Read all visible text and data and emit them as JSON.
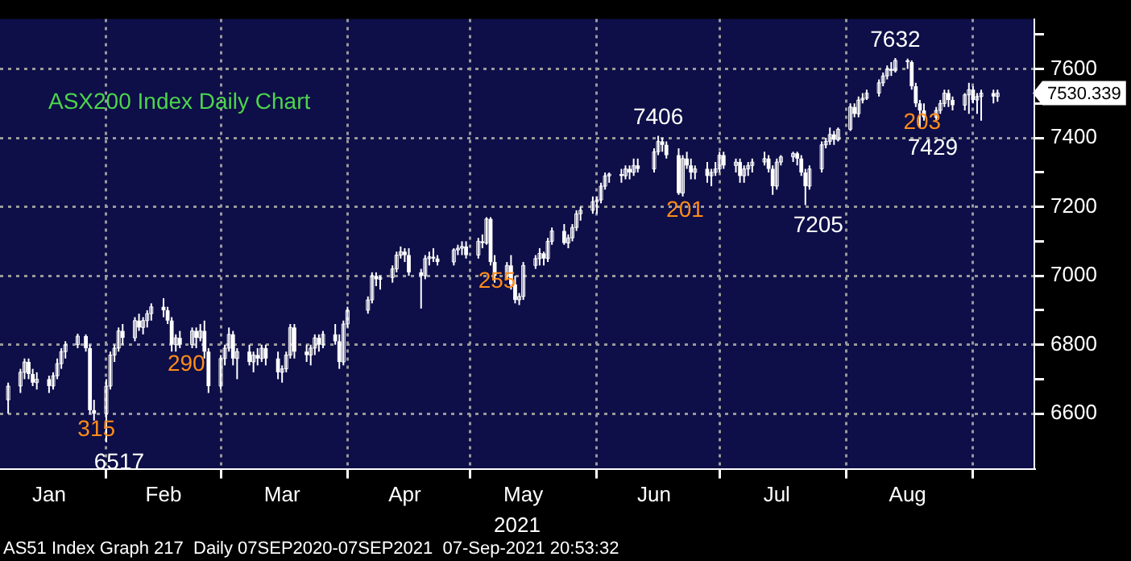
{
  "chart_data": {
    "type": "candlestick",
    "title": "ASX200 Index Daily Chart",
    "xlabel": "2021",
    "x": [
      "2021-01-08",
      "2021-01-11",
      "2021-01-12",
      "2021-01-13",
      "2021-01-14",
      "2021-01-15",
      "2021-01-18",
      "2021-01-19",
      "2021-01-20",
      "2021-01-21",
      "2021-01-22",
      "2021-01-25",
      "2021-01-27",
      "2021-01-28",
      "2021-01-29",
      "2021-02-01",
      "2021-02-02",
      "2021-02-03",
      "2021-02-04",
      "2021-02-05",
      "2021-02-08",
      "2021-02-09",
      "2021-02-10",
      "2021-02-11",
      "2021-02-12",
      "2021-02-15",
      "2021-02-16",
      "2021-02-17",
      "2021-02-18",
      "2021-02-19",
      "2021-02-22",
      "2021-02-23",
      "2021-02-24",
      "2021-02-25",
      "2021-02-26",
      "2021-03-01",
      "2021-03-02",
      "2021-03-03",
      "2021-03-04",
      "2021-03-05",
      "2021-03-08",
      "2021-03-09",
      "2021-03-10",
      "2021-03-11",
      "2021-03-12",
      "2021-03-15",
      "2021-03-16",
      "2021-03-17",
      "2021-03-18",
      "2021-03-19",
      "2021-03-22",
      "2021-03-23",
      "2021-03-24",
      "2021-03-25",
      "2021-03-26",
      "2021-03-29",
      "2021-03-30",
      "2021-03-31",
      "2021-04-01",
      "2021-04-06",
      "2021-04-07",
      "2021-04-08",
      "2021-04-09",
      "2021-04-12",
      "2021-04-13",
      "2021-04-14",
      "2021-04-15",
      "2021-04-16",
      "2021-04-19",
      "2021-04-20",
      "2021-04-21",
      "2021-04-22",
      "2021-04-23",
      "2021-04-27",
      "2021-04-28",
      "2021-04-29",
      "2021-04-30",
      "2021-05-03",
      "2021-05-04",
      "2021-05-05",
      "2021-05-06",
      "2021-05-07",
      "2021-05-10",
      "2021-05-11",
      "2021-05-12",
      "2021-05-13",
      "2021-05-14",
      "2021-05-17",
      "2021-05-18",
      "2021-05-19",
      "2021-05-20",
      "2021-05-21",
      "2021-05-24",
      "2021-05-25",
      "2021-05-26",
      "2021-05-27",
      "2021-05-28",
      "2021-05-31",
      "2021-06-01",
      "2021-06-02",
      "2021-06-03",
      "2021-06-04",
      "2021-06-07",
      "2021-06-08",
      "2021-06-09",
      "2021-06-10",
      "2021-06-11",
      "2021-06-15",
      "2021-06-16",
      "2021-06-17",
      "2021-06-18",
      "2021-06-21",
      "2021-06-22",
      "2021-06-23",
      "2021-06-24",
      "2021-06-25",
      "2021-06-28",
      "2021-06-29",
      "2021-06-30",
      "2021-07-01",
      "2021-07-02",
      "2021-07-05",
      "2021-07-06",
      "2021-07-07",
      "2021-07-08",
      "2021-07-09",
      "2021-07-12",
      "2021-07-13",
      "2021-07-14",
      "2021-07-15",
      "2021-07-16",
      "2021-07-19",
      "2021-07-20",
      "2021-07-21",
      "2021-07-22",
      "2021-07-23",
      "2021-07-26",
      "2021-07-27",
      "2021-07-28",
      "2021-07-29",
      "2021-07-30",
      "2021-08-02",
      "2021-08-03",
      "2021-08-04",
      "2021-08-05",
      "2021-08-06",
      "2021-08-09",
      "2021-08-10",
      "2021-08-11",
      "2021-08-12",
      "2021-08-13",
      "2021-08-16",
      "2021-08-17",
      "2021-08-18",
      "2021-08-19",
      "2021-08-20",
      "2021-08-23",
      "2021-08-24",
      "2021-08-25",
      "2021-08-26",
      "2021-08-27",
      "2021-08-30",
      "2021-08-31",
      "2021-09-01",
      "2021-09-02",
      "2021-09-03",
      "2021-09-06",
      "2021-09-07"
    ],
    "ohlc": [
      [
        6640,
        6690,
        6600,
        6680
      ],
      [
        6680,
        6730,
        6660,
        6720
      ],
      [
        6720,
        6760,
        6700,
        6750
      ],
      [
        6750,
        6760,
        6700,
        6715
      ],
      [
        6715,
        6730,
        6680,
        6690
      ],
      [
        6690,
        6720,
        6670,
        6700
      ],
      [
        6700,
        6710,
        6660,
        6680
      ],
      [
        6680,
        6720,
        6670,
        6710
      ],
      [
        6710,
        6760,
        6700,
        6745
      ],
      [
        6745,
        6790,
        6730,
        6780
      ],
      [
        6780,
        6810,
        6760,
        6800
      ],
      [
        6800,
        6832,
        6790,
        6825
      ],
      [
        6825,
        6830,
        6780,
        6790
      ],
      [
        6790,
        6800,
        6600,
        6610
      ],
      [
        6610,
        6640,
        6580,
        6600
      ],
      [
        6600,
        6700,
        6517,
        6680
      ],
      [
        6680,
        6780,
        6670,
        6770
      ],
      [
        6770,
        6800,
        6750,
        6790
      ],
      [
        6790,
        6850,
        6780,
        6840
      ],
      [
        6840,
        6860,
        6800,
        6820
      ],
      [
        6820,
        6880,
        6810,
        6870
      ],
      [
        6870,
        6890,
        6840,
        6850
      ],
      [
        6850,
        6880,
        6830,
        6870
      ],
      [
        6870,
        6900,
        6850,
        6890
      ],
      [
        6890,
        6920,
        6870,
        6910
      ],
      [
        6910,
        6935,
        6880,
        6900
      ],
      [
        6900,
        6910,
        6860,
        6870
      ],
      [
        6870,
        6880,
        6780,
        6800
      ],
      [
        6800,
        6830,
        6780,
        6820
      ],
      [
        6820,
        6840,
        6790,
        6800
      ],
      [
        6800,
        6850,
        6790,
        6840
      ],
      [
        6840,
        6850,
        6790,
        6820
      ],
      [
        6820,
        6860,
        6810,
        6840
      ],
      [
        6840,
        6870,
        6760,
        6780
      ],
      [
        6780,
        6790,
        6660,
        6680
      ],
      [
        6680,
        6770,
        6670,
        6760
      ],
      [
        6760,
        6800,
        6740,
        6790
      ],
      [
        6790,
        6850,
        6780,
        6830
      ],
      [
        6830,
        6840,
        6740,
        6760
      ],
      [
        6760,
        6790,
        6700,
        6780
      ],
      [
        6780,
        6800,
        6740,
        6750
      ],
      [
        6750,
        6780,
        6720,
        6770
      ],
      [
        6770,
        6790,
        6740,
        6760
      ],
      [
        6760,
        6800,
        6750,
        6790
      ],
      [
        6790,
        6800,
        6740,
        6760
      ],
      [
        6760,
        6780,
        6700,
        6720
      ],
      [
        6720,
        6740,
        6690,
        6730
      ],
      [
        6730,
        6780,
        6720,
        6770
      ],
      [
        6770,
        6860,
        6760,
        6850
      ],
      [
        6850,
        6860,
        6760,
        6780
      ],
      [
        6780,
        6800,
        6750,
        6770
      ],
      [
        6770,
        6800,
        6740,
        6790
      ],
      [
        6790,
        6830,
        6770,
        6820
      ],
      [
        6820,
        6830,
        6780,
        6800
      ],
      [
        6800,
        6840,
        6790,
        6830
      ],
      [
        6830,
        6860,
        6800,
        6810
      ],
      [
        6810,
        6830,
        6730,
        6750
      ],
      [
        6750,
        6870,
        6740,
        6860
      ],
      [
        6860,
        6910,
        6850,
        6900
      ],
      [
        6900,
        6940,
        6890,
        6930
      ],
      [
        6930,
        7010,
        6920,
        7000
      ],
      [
        7000,
        7010,
        6970,
        6990
      ],
      [
        6990,
        7000,
        6960,
        6995
      ],
      [
        6995,
        7030,
        6980,
        7020
      ],
      [
        7020,
        7070,
        7010,
        7060
      ],
      [
        7060,
        7085,
        7050,
        7070
      ],
      [
        7070,
        7080,
        7040,
        7060
      ],
      [
        7060,
        7080,
        7000,
        7010
      ],
      [
        7010,
        7020,
        6905,
        7000
      ],
      [
        7000,
        7060,
        6990,
        7050
      ],
      [
        7050,
        7070,
        7030,
        7055
      ],
      [
        7055,
        7080,
        7040,
        7050
      ],
      [
        7050,
        7060,
        7030,
        7040
      ],
      [
        7040,
        7080,
        7030,
        7075
      ],
      [
        7075,
        7090,
        7060,
        7080
      ],
      [
        7080,
        7100,
        7060,
        7085
      ],
      [
        7085,
        7100,
        7050,
        7060
      ],
      [
        7060,
        7110,
        7050,
        7100
      ],
      [
        7100,
        7120,
        7080,
        7095
      ],
      [
        7095,
        7170,
        7090,
        7165
      ],
      [
        7165,
        7170,
        7030,
        7040
      ],
      [
        7040,
        7060,
        6980,
        7000
      ],
      [
        7000,
        7040,
        6990,
        7030
      ],
      [
        7030,
        7060,
        6960,
        6975
      ],
      [
        6975,
        7000,
        6920,
        6930
      ],
      [
        6930,
        6950,
        6915,
        6940
      ],
      [
        6940,
        7040,
        6930,
        7030
      ],
      [
        7030,
        7060,
        7020,
        7050
      ],
      [
        7050,
        7080,
        7030,
        7065
      ],
      [
        7065,
        7070,
        7030,
        7050
      ],
      [
        7050,
        7110,
        7040,
        7100
      ],
      [
        7100,
        7140,
        7090,
        7130
      ],
      [
        7130,
        7150,
        7090,
        7095
      ],
      [
        7095,
        7120,
        7080,
        7110
      ],
      [
        7110,
        7150,
        7100,
        7140
      ],
      [
        7140,
        7190,
        7130,
        7180
      ],
      [
        7180,
        7200,
        7160,
        7190
      ],
      [
        7190,
        7230,
        7180,
        7215
      ],
      [
        7215,
        7230,
        7180,
        7220
      ],
      [
        7220,
        7270,
        7210,
        7260
      ],
      [
        7260,
        7300,
        7250,
        7290
      ],
      [
        7290,
        7300,
        7270,
        7295
      ],
      [
        7295,
        7310,
        7270,
        7290
      ],
      [
        7290,
        7320,
        7280,
        7310
      ],
      [
        7310,
        7320,
        7280,
        7300
      ],
      [
        7300,
        7340,
        7290,
        7320
      ],
      [
        7320,
        7340,
        7300,
        7310
      ],
      [
        7310,
        7370,
        7300,
        7360
      ],
      [
        7360,
        7406,
        7350,
        7390
      ],
      [
        7390,
        7400,
        7360,
        7380
      ],
      [
        7380,
        7390,
        7340,
        7350
      ],
      [
        7350,
        7370,
        7235,
        7240
      ],
      [
        7240,
        7350,
        7230,
        7340
      ],
      [
        7340,
        7360,
        7310,
        7320
      ],
      [
        7320,
        7340,
        7280,
        7300
      ],
      [
        7300,
        7320,
        7280,
        7310
      ],
      [
        7310,
        7330,
        7270,
        7290
      ],
      [
        7290,
        7310,
        7260,
        7300
      ],
      [
        7300,
        7330,
        7290,
        7310
      ],
      [
        7310,
        7360,
        7300,
        7350
      ],
      [
        7350,
        7360,
        7310,
        7320
      ],
      [
        7320,
        7340,
        7300,
        7330
      ],
      [
        7330,
        7340,
        7270,
        7290
      ],
      [
        7290,
        7320,
        7270,
        7310
      ],
      [
        7310,
        7330,
        7290,
        7320
      ],
      [
        7320,
        7340,
        7300,
        7330
      ],
      [
        7330,
        7360,
        7320,
        7340
      ],
      [
        7340,
        7350,
        7300,
        7310
      ],
      [
        7310,
        7320,
        7235,
        7260
      ],
      [
        7260,
        7340,
        7250,
        7330
      ],
      [
        7330,
        7350,
        7320,
        7345
      ],
      [
        7345,
        7360,
        7330,
        7355
      ],
      [
        7355,
        7360,
        7320,
        7340
      ],
      [
        7340,
        7350,
        7290,
        7300
      ],
      [
        7300,
        7310,
        7205,
        7260
      ],
      [
        7260,
        7320,
        7250,
        7310
      ],
      [
        7310,
        7390,
        7300,
        7380
      ],
      [
        7380,
        7400,
        7370,
        7390
      ],
      [
        7390,
        7430,
        7380,
        7410
      ],
      [
        7410,
        7420,
        7380,
        7395
      ],
      [
        7395,
        7430,
        7390,
        7425
      ],
      [
        7425,
        7500,
        7420,
        7490
      ],
      [
        7490,
        7500,
        7460,
        7470
      ],
      [
        7470,
        7520,
        7460,
        7510
      ],
      [
        7510,
        7530,
        7500,
        7515
      ],
      [
        7515,
        7540,
        7510,
        7530
      ],
      [
        7530,
        7570,
        7520,
        7560
      ],
      [
        7560,
        7590,
        7550,
        7580
      ],
      [
        7580,
        7610,
        7570,
        7600
      ],
      [
        7600,
        7620,
        7580,
        7595
      ],
      [
        7595,
        7632,
        7590,
        7625
      ],
      [
        7625,
        7630,
        7600,
        7620
      ],
      [
        7620,
        7625,
        7540,
        7550
      ],
      [
        7550,
        7560,
        7490,
        7500
      ],
      [
        7500,
        7510,
        7429,
        7480
      ],
      [
        7480,
        7500,
        7450,
        7460
      ],
      [
        7460,
        7490,
        7450,
        7480
      ],
      [
        7480,
        7510,
        7470,
        7500
      ],
      [
        7500,
        7540,
        7490,
        7530
      ],
      [
        7530,
        7540,
        7490,
        7510
      ],
      [
        7510,
        7520,
        7480,
        7495
      ],
      [
        7495,
        7530,
        7480,
        7525
      ],
      [
        7525,
        7560,
        7470,
        7540
      ],
      [
        7540,
        7550,
        7500,
        7510
      ],
      [
        7510,
        7530,
        7470,
        7520
      ],
      [
        7520,
        7540,
        7450,
        7530
      ],
      [
        7530,
        7540,
        7500,
        7520
      ],
      [
        7520,
        7540,
        7505,
        7530.339
      ]
    ],
    "color": "#ffffff",
    "xlim": [
      "2021-01-06",
      "2021-09-16"
    ],
    "xticks": [
      {
        "value": "2021-01-18",
        "label": "Jan"
      },
      {
        "value": "2021-02-15",
        "label": "Feb"
      },
      {
        "value": "2021-03-16",
        "label": "Mar"
      },
      {
        "value": "2021-04-15",
        "label": "Apr"
      },
      {
        "value": "2021-05-14",
        "label": "May"
      },
      {
        "value": "2021-06-15",
        "label": "Jun"
      },
      {
        "value": "2021-07-15",
        "label": "Jul"
      },
      {
        "value": "2021-08-16",
        "label": "Aug"
      },
      {
        "value": "2021-02-01",
        "label": null
      },
      {
        "value": "2021-03-01",
        "label": null
      },
      {
        "value": "2021-04-01",
        "label": null
      },
      {
        "value": "2021-05-01",
        "label": null
      },
      {
        "value": "2021-06-01",
        "label": null
      },
      {
        "value": "2021-07-01",
        "label": null
      },
      {
        "value": "2021-08-01",
        "label": null
      },
      {
        "value": "2021-09-01",
        "label": null
      }
    ],
    "ylim": [
      6440,
      7745
    ],
    "yticks": [
      6600,
      {
        "value": 6700,
        "label": null
      },
      6800,
      {
        "value": 6900,
        "label": null
      },
      7000,
      {
        "value": 7100,
        "label": null
      },
      7200,
      {
        "value": 7300,
        "label": null
      },
      7400,
      {
        "value": 7500,
        "label": null
      },
      7600,
      {
        "value": 7700,
        "label": null
      }
    ],
    "grid": true,
    "annotations": [
      {
        "text": "7632",
        "x": "2021-08-13",
        "y": 7632
      },
      {
        "text": "7406",
        "x": "2021-06-16",
        "y": 7406
      },
      {
        "text": "7205",
        "x": "2021-07-22",
        "y": 7205
      },
      {
        "text": "7429",
        "x": "2021-08-19",
        "y": 7429
      },
      {
        "text": "6517",
        "x": "2021-02-01",
        "y": 6517
      },
      {
        "text": "315",
        "x": "2021-01-28",
        "y": 6600
      },
      {
        "text": "290",
        "x": "2021-02-19",
        "y": 6790
      },
      {
        "text": "255",
        "x": "2021-05-06",
        "y": 7030
      },
      {
        "text": "201",
        "x": "2021-06-21",
        "y": 7235
      },
      {
        "text": "203",
        "x": "2021-08-18",
        "y": 7490
      },
      {
        "text": "7530.339",
        "x": "2021-09-07",
        "y": 7530.339
      },
      "AS51 Index Graph 217  Daily 07SEP2020-07SEP2021  07-Sep-2021 20:53:32"
    ]
  }
}
